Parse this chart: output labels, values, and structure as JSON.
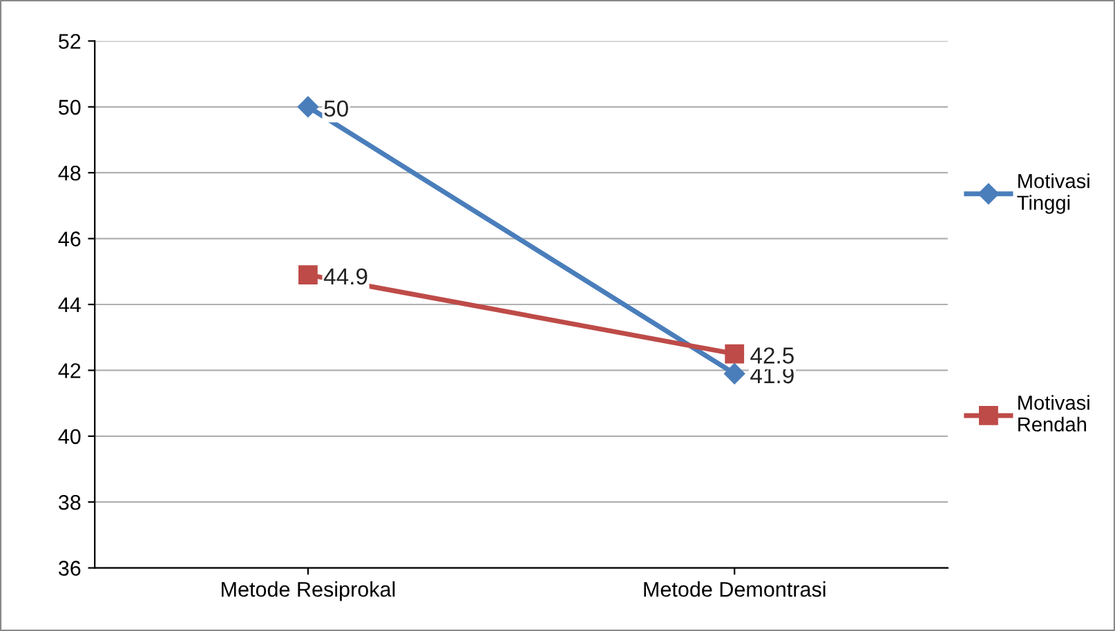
{
  "chart_data": {
    "type": "line",
    "categories": [
      "Metode Resiprokal",
      "Metode Demontrasi"
    ],
    "series": [
      {
        "name": "Motivasi Tinggi",
        "color": "#4a7ebb",
        "values": [
          50,
          41.9
        ],
        "marker": "diamond"
      },
      {
        "name": "Motivasi Rendah",
        "color": "#be4b48",
        "values": [
          44.9,
          42.5
        ],
        "marker": "square"
      }
    ],
    "ylim": [
      36,
      52
    ],
    "yticks": [
      36,
      38,
      40,
      42,
      44,
      46,
      48,
      50,
      52
    ],
    "grid": "y",
    "legend": "right",
    "data_labels": true,
    "line_style": "solid"
  }
}
